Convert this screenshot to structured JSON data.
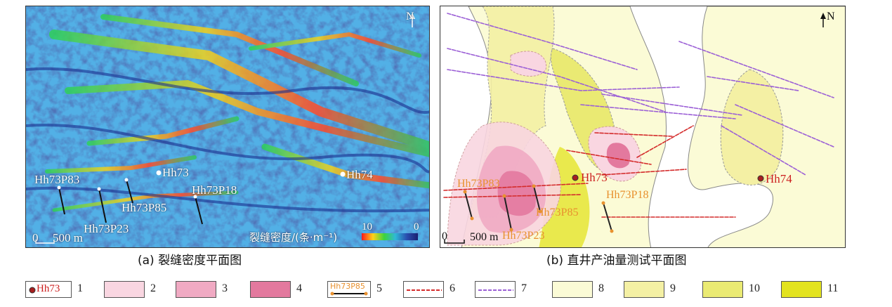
{
  "panel_a": {
    "north_label": "N",
    "wells": [
      {
        "id": "well-hh73",
        "label": "Hh73"
      },
      {
        "id": "well-hh74",
        "label": "Hh74"
      },
      {
        "id": "well-hh73p83",
        "label": "Hh73P83"
      },
      {
        "id": "well-hh73p85",
        "label": "Hh73P85"
      },
      {
        "id": "well-hh73p18",
        "label": "Hh73P18"
      },
      {
        "id": "well-hh73p23",
        "label": "Hh73P23"
      }
    ],
    "scale_zero": "0",
    "scale_text": "500 m",
    "colorbar_label": "裂缝密度/(条·m⁻¹)",
    "colorbar_max": "10",
    "colorbar_min": "0",
    "caption": "(a) 裂缝密度平面图"
  },
  "panel_b": {
    "north_label": "N",
    "wells": [
      {
        "id": "well-hh73",
        "label": "Hh73"
      },
      {
        "id": "well-hh74",
        "label": "Hh74"
      },
      {
        "id": "well-hh73p83",
        "label": "Hh73P83"
      },
      {
        "id": "well-hh73p85",
        "label": "Hh73P85"
      },
      {
        "id": "well-hh73p18",
        "label": "Hh73P18"
      },
      {
        "id": "well-hh73p23",
        "label": "Hh73P23"
      }
    ],
    "scale_zero": "0",
    "scale_text": "500 m",
    "caption": "(b) 直井产油量测试平面图"
  },
  "legend": [
    {
      "num": "1",
      "kind": "well",
      "text": "Hh73",
      "color": "#cc1f1f"
    },
    {
      "num": "2",
      "kind": "fill",
      "color": "#f9d6e1"
    },
    {
      "num": "3",
      "kind": "fill",
      "color": "#f0aac3"
    },
    {
      "num": "4",
      "kind": "fill",
      "color": "#e3799e"
    },
    {
      "num": "5",
      "kind": "hwell",
      "text": "Hh73P85",
      "color": "#e8912f"
    },
    {
      "num": "6",
      "kind": "line",
      "color": "#d42b2b"
    },
    {
      "num": "7",
      "kind": "line",
      "color": "#9b5fd6"
    },
    {
      "num": "8",
      "kind": "fill",
      "color": "#fbfbd6"
    },
    {
      "num": "9",
      "kind": "fill",
      "color": "#f4f0a4"
    },
    {
      "num": "10",
      "kind": "fill",
      "color": "#eaea73"
    },
    {
      "num": "11",
      "kind": "fill",
      "color": "#e3e31f"
    }
  ]
}
